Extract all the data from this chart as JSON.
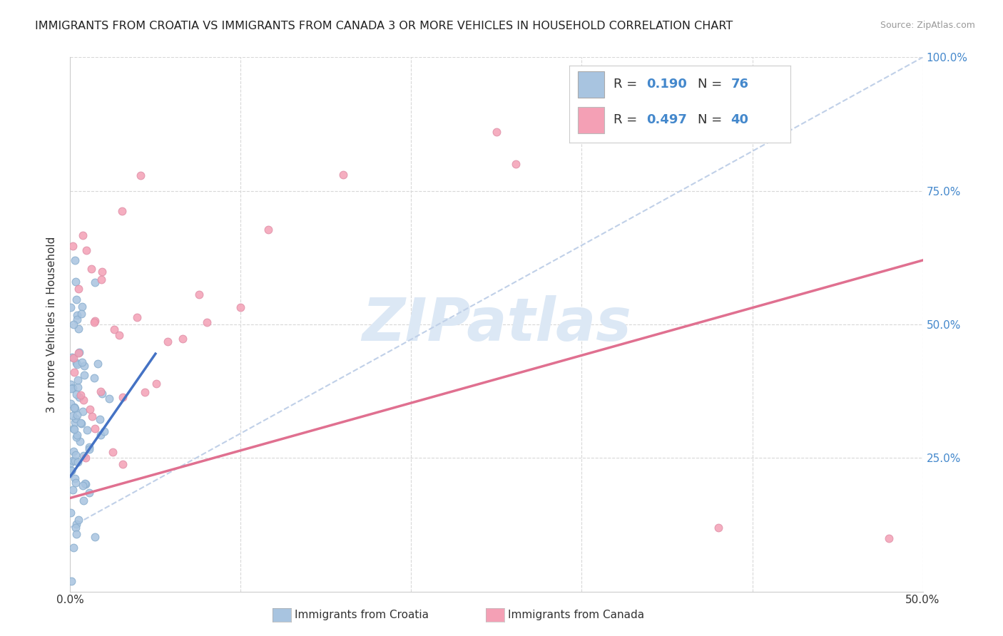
{
  "title": "IMMIGRANTS FROM CROATIA VS IMMIGRANTS FROM CANADA 3 OR MORE VEHICLES IN HOUSEHOLD CORRELATION CHART",
  "source": "Source: ZipAtlas.com",
  "ylabel": "3 or more Vehicles in Household",
  "xlim": [
    0,
    0.5
  ],
  "ylim": [
    0,
    1.0
  ],
  "legend_label_1": "Immigrants from Croatia",
  "legend_label_2": "Immigrants from Canada",
  "R1": 0.19,
  "N1": 76,
  "R2": 0.497,
  "N2": 40,
  "color1": "#a8c4e0",
  "color2": "#f4a0b5",
  "trendline1_color": "#4472c4",
  "trendline2_color": "#e07090",
  "diag_color": "#c0d0e8",
  "watermark": "ZIPatlas",
  "watermark_color": "#dce8f5",
  "grid_color": "#d8d8d8",
  "axis_color": "#cccccc",
  "text_color": "#333333",
  "right_axis_color": "#4488cc",
  "title_fontsize": 11.5,
  "source_fontsize": 9,
  "tick_fontsize": 11,
  "ylabel_fontsize": 11,
  "legend_text_color": "#333333",
  "legend_val_color": "#4488cc"
}
